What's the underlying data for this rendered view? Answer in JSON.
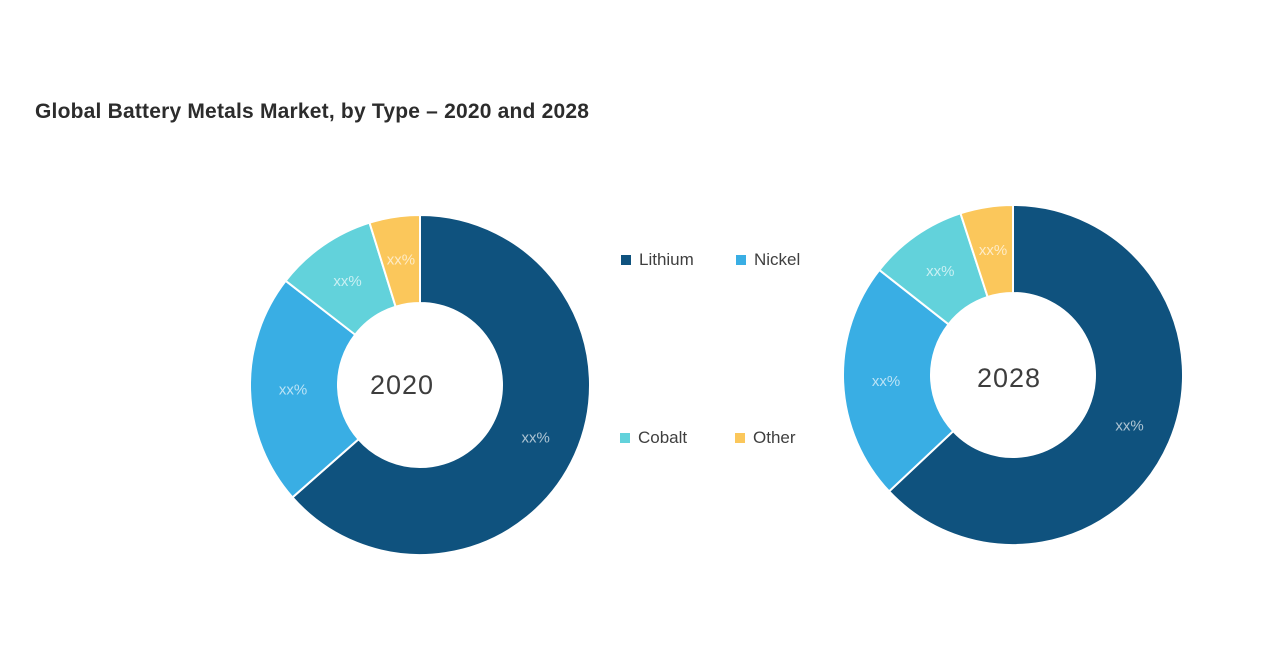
{
  "page": {
    "title": "Global Battery Metals Market, by Type – 2020 and 2028",
    "background": "#ffffff",
    "title_color": "#2c2c2c"
  },
  "legend": {
    "position": "center-between-donuts",
    "text_color": "#3f3f3f",
    "items": [
      {
        "label": "Lithium",
        "color": "#0F527E"
      },
      {
        "label": "Nickel",
        "color": "#39AEE4"
      },
      {
        "label": "Cobalt",
        "color": "#62D2DB"
      },
      {
        "label": "Other",
        "color": "#FBC75B"
      }
    ]
  },
  "chart_data": [
    {
      "type": "pie",
      "subtype": "donut",
      "center_label": "2020",
      "categories": [
        "Lithium",
        "Nickel",
        "Cobalt",
        "Other"
      ],
      "values": [
        63.5,
        22.0,
        9.7,
        4.8
      ],
      "values_note": "percentages estimated from arc angles; printed data labels are masked as xx%",
      "data_labels": [
        "xx%",
        "xx%",
        "xx%",
        "xx%"
      ],
      "colors": [
        "#0F527E",
        "#39AEE4",
        "#62D2DB",
        "#FBC75B"
      ],
      "start_angle_deg": 0,
      "direction": "clockwise",
      "inner_radius_ratio": 0.48,
      "slice_label_color": "rgba(255,255,255,0.66)"
    },
    {
      "type": "pie",
      "subtype": "donut",
      "center_label": "2028",
      "categories": [
        "Lithium",
        "Nickel",
        "Cobalt",
        "Other"
      ],
      "values": [
        63.0,
        22.6,
        9.4,
        5.0
      ],
      "values_note": "percentages estimated from arc angles; printed data labels are masked as xx%",
      "data_labels": [
        "xx%",
        "xx%",
        "xx%",
        "xx%"
      ],
      "colors": [
        "#0F527E",
        "#39AEE4",
        "#62D2DB",
        "#FBC75B"
      ],
      "start_angle_deg": 0,
      "direction": "clockwise",
      "inner_radius_ratio": 0.48,
      "slice_label_color": "rgba(255,255,255,0.66)"
    }
  ]
}
